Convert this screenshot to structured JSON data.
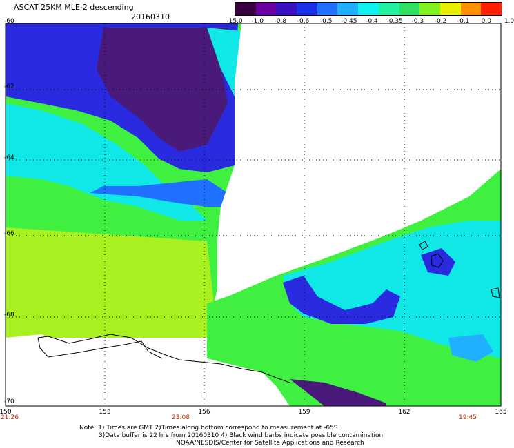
{
  "header": {
    "title": "ASCAT 25KM MLE-2 descending",
    "date": "20160310"
  },
  "colorbar": {
    "labels": [
      "-15.0",
      "-1.0",
      "-0.8",
      "-0.6",
      "-0.5",
      "-0.45",
      "-0.4",
      "-0.35",
      "-0.3",
      "-0.2",
      "-0.1",
      "0.0",
      "1.0"
    ],
    "colors": [
      "#3a0040",
      "#6a00a0",
      "#3a10c0",
      "#1a30e8",
      "#2070ff",
      "#20b0ff",
      "#10f0f0",
      "#20f0a0",
      "#30e060",
      "#80f020",
      "#e8f000",
      "#ff9000",
      "#ff2000"
    ]
  },
  "axes": {
    "lat_labels": [
      "-60",
      "-62",
      "-64",
      "-66",
      "-68",
      "-70"
    ],
    "lon_labels": [
      "150",
      "153",
      "156",
      "159",
      "162",
      "165"
    ]
  },
  "times": [
    "21:26",
    "23:08",
    "19:45"
  ],
  "notes": [
    "Note: 1) Times are GMT 2)Times along bottom correspond to measurement at -65S",
    "3)Data buffer is 22 hrs from 20160310 4) Black wind barbs indicate possible contamination",
    "NOAA/NESDIS/Center for Satellite Applications and Research"
  ],
  "colors": {
    "no_data": "#ffffff",
    "deep_purple": "#4a1a7a",
    "blue": "#2a2ae0",
    "cyan": "#10e8e8",
    "green": "#40f040",
    "yellow_green": "#a8f020",
    "coast": "#000000"
  }
}
